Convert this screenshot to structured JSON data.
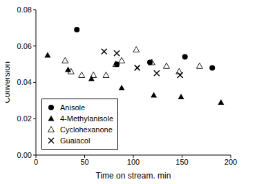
{
  "chart_data": {
    "type": "scatter",
    "x_label": "Time on stream, min",
    "y_label": "Conversion",
    "xlim": [
      0,
      200
    ],
    "xticks": [
      0,
      50,
      100,
      150,
      200
    ],
    "ylim": [
      0,
      0.08
    ],
    "yticks": [
      {
        "value": 0,
        "label": "0.00"
      },
      {
        "value": 0.02,
        "label": "0.02"
      },
      {
        "value": 0.04,
        "label": "0.04"
      },
      {
        "value": 0.06,
        "label": "0.06"
      },
      {
        "value": 0.08,
        "label": "0.08"
      }
    ],
    "legend": "lower left",
    "series": [
      {
        "name": "Anisole",
        "color": "#000000",
        "marker": "circle",
        "x": [
          42,
          83,
          117,
          153,
          181
        ],
        "values": [
          0.069,
          0.05,
          0.051,
          0.054,
          0.048
        ]
      },
      {
        "name": "4-Methylanisole",
        "color": "#000000",
        "marker": "triangle",
        "x": [
          12,
          33,
          57,
          88,
          121,
          149,
          190
        ],
        "values": [
          0.055,
          0.047,
          0.042,
          0.037,
          0.033,
          0.032,
          0.029
        ]
      },
      {
        "name": "Cyclohexanone",
        "color": "#000000",
        "marker": "triangle-open",
        "x": [
          30,
          36,
          47,
          59,
          72,
          82,
          88,
          103,
          119,
          134,
          147,
          168
        ],
        "values": [
          0.052,
          0.046,
          0.044,
          0.044,
          0.044,
          0.05,
          0.052,
          0.058,
          0.051,
          0.049,
          0.046,
          0.049
        ]
      },
      {
        "name": "Guaiacol",
        "color": "#000000",
        "marker": "x",
        "x": [
          70,
          83,
          104,
          124,
          148
        ],
        "values": [
          0.057,
          0.056,
          0.048,
          0.045,
          0.044
        ]
      }
    ]
  }
}
